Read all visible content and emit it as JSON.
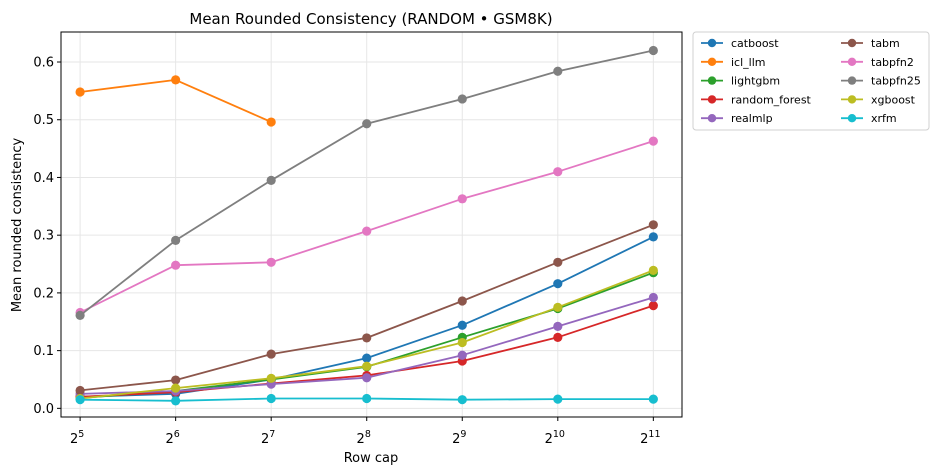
{
  "chart_data": {
    "type": "line",
    "title": "Mean Rounded Consistency (RANDOM • GSM8K)",
    "xlabel": "Row cap",
    "ylabel": "Mean rounded consistency",
    "x_tick_base": "2",
    "x_exponents": [
      5,
      6,
      7,
      8,
      9,
      10,
      11
    ],
    "x_tick_labels": [
      "2^5",
      "2^6",
      "2^7",
      "2^8",
      "2^9",
      "2^10",
      "2^11"
    ],
    "y_ticks": [
      0.0,
      0.1,
      0.2,
      0.3,
      0.4,
      0.5,
      0.6
    ],
    "y_tick_labels": [
      "0.0",
      "0.1",
      "0.2",
      "0.3",
      "0.4",
      "0.5",
      "0.6"
    ],
    "ylim": [
      -0.015,
      0.652
    ],
    "xlim": [
      4.8,
      11.3
    ],
    "grid": true,
    "legend_position": "outside-right-top",
    "series": [
      {
        "name": "catboost",
        "color": "#1f77b4",
        "values": [
          0.02,
          0.025,
          0.05,
          0.087,
          0.144,
          0.216,
          0.297
        ]
      },
      {
        "name": "icl_llm",
        "color": "#ff7f0e",
        "values": [
          0.548,
          0.569,
          0.496,
          null,
          null,
          null,
          null
        ]
      },
      {
        "name": "lightgbm",
        "color": "#2ca02c",
        "values": [
          0.018,
          0.03,
          0.05,
          0.072,
          0.123,
          0.173,
          0.235
        ]
      },
      {
        "name": "random_forest",
        "color": "#d62728",
        "values": [
          0.02,
          0.028,
          0.043,
          0.057,
          0.082,
          0.123,
          0.178
        ]
      },
      {
        "name": "realmlp",
        "color": "#9467bd",
        "values": [
          0.025,
          0.03,
          0.042,
          0.053,
          0.092,
          0.142,
          0.192
        ]
      },
      {
        "name": "tabm",
        "color": "#8c564b",
        "values": [
          0.031,
          0.049,
          0.094,
          0.122,
          0.186,
          0.253,
          0.318
        ]
      },
      {
        "name": "tabpfn2",
        "color": "#e377c2",
        "values": [
          0.166,
          0.248,
          0.253,
          0.307,
          0.363,
          0.41,
          0.463
        ]
      },
      {
        "name": "tabpfn25",
        "color": "#7f7f7f",
        "values": [
          0.161,
          0.291,
          0.395,
          0.493,
          0.536,
          0.584,
          0.62
        ]
      },
      {
        "name": "xgboost",
        "color": "#bcbd22",
        "values": [
          0.017,
          0.035,
          0.052,
          0.073,
          0.114,
          0.175,
          0.239
        ]
      },
      {
        "name": "xrfm",
        "color": "#17becf",
        "values": [
          0.015,
          0.013,
          0.017,
          0.017,
          0.015,
          0.016,
          0.016
        ]
      }
    ]
  }
}
